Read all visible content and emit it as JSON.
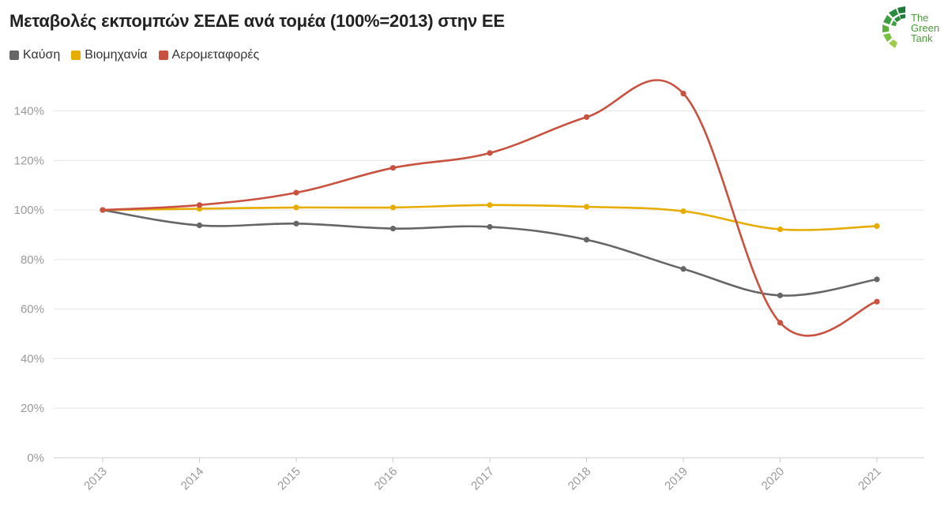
{
  "title": "Μεταβολές εκπομπών ΣΕΔΕ ανά τομέα (100%=2013) στην ΕΕ",
  "logo": {
    "line1": "The",
    "line2": "Green",
    "line3": "Tank"
  },
  "colors": {
    "kausi": "#666666",
    "viomichania": "#e6ac00",
    "aerometafores": "#c9513f",
    "grid": "#e6e6e6",
    "axis": "#cccccc"
  },
  "chart_data": {
    "type": "line",
    "title": "Μεταβολές εκπομπών ΣΕΔΕ ανά τομέα (100%=2013) στην ΕΕ",
    "x": [
      "2013",
      "2014",
      "2015",
      "2016",
      "2017",
      "2018",
      "2019",
      "2020",
      "2021"
    ],
    "y_ticks": [
      "0%",
      "20%",
      "40%",
      "60%",
      "80%",
      "100%",
      "120%",
      "140%"
    ],
    "ylim": [
      0,
      140
    ],
    "grid": true,
    "legend_position": "top-left",
    "series": [
      {
        "name": "Καύση",
        "color": "#666666",
        "values": [
          100,
          93.8,
          94.5,
          92.5,
          93.2,
          88.0,
          76.2,
          65.5,
          72.0
        ]
      },
      {
        "name": "Βιομηχανία",
        "color": "#e6ac00",
        "values": [
          100,
          100.5,
          101.0,
          101.0,
          102.0,
          101.3,
          99.5,
          92.2,
          93.5
        ]
      },
      {
        "name": "Αερομεταφορές",
        "color": "#c9513f",
        "values": [
          100,
          102.0,
          107.0,
          117.0,
          123.0,
          137.5,
          147.0,
          54.5,
          63.0
        ]
      }
    ]
  }
}
